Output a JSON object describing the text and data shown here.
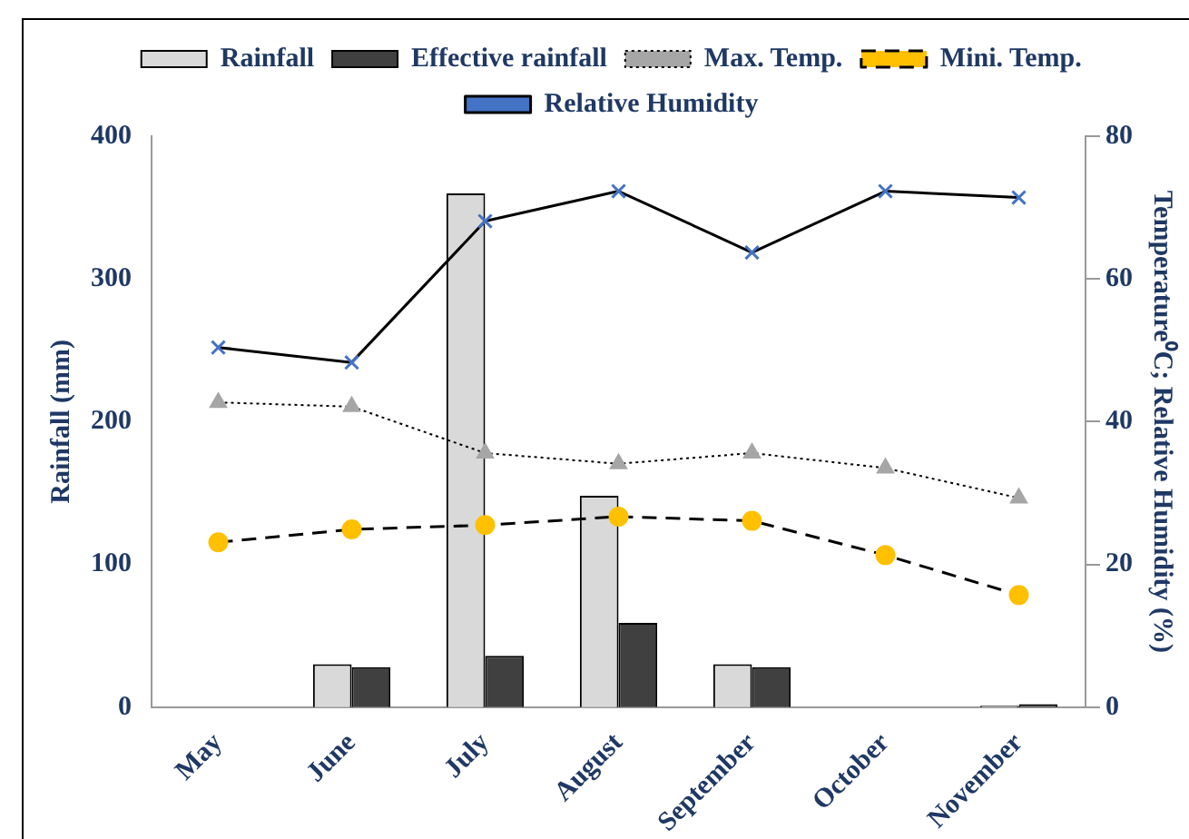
{
  "chart_data": {
    "type": "bar",
    "categories": [
      "May",
      "June",
      "July",
      "August",
      "September",
      "October",
      "November"
    ],
    "ylabel": "Rainfall (mm)",
    "y2label": "Temperature⁰C; Relative Humidity (%)",
    "ylim": [
      0,
      400
    ],
    "yticks": [
      0,
      100,
      200,
      300,
      400
    ],
    "y2lim": [
      0,
      80
    ],
    "y2ticks": [
      0,
      20,
      40,
      60,
      80
    ],
    "legend": "top",
    "grid": false,
    "series": [
      {
        "name": "Rainfall",
        "color": "#d9d9d9",
        "values": [
          0,
          30,
          360,
          148,
          30,
          0,
          1
        ]
      },
      {
        "name": "Effective rainfall",
        "color": "#404040",
        "values": [
          0,
          28,
          36,
          59,
          28,
          0,
          2
        ]
      },
      {
        "name": "Max. Temp.",
        "type": "line",
        "axis": "y2",
        "color": "#a6a6a6",
        "marker": "triangle",
        "line_style": "dotted",
        "values": [
          42.7,
          42.1,
          35.6,
          34.1,
          35.6,
          33.5,
          29.3
        ]
      },
      {
        "name": "Mini. Temp.",
        "type": "line",
        "axis": "y2",
        "color": "#ffc000",
        "marker": "circle",
        "line_style": "dashed",
        "values": [
          23.1,
          24.9,
          25.5,
          26.7,
          26.1,
          21.3,
          15.7
        ]
      },
      {
        "name": "Relative Humidity",
        "type": "line",
        "axis": "y2",
        "color": "#4472c4",
        "marker": "cross",
        "line_style": "solid",
        "values": [
          50.4,
          48.3,
          68.1,
          72.3,
          63.7,
          72.3,
          71.4
        ]
      }
    ]
  }
}
